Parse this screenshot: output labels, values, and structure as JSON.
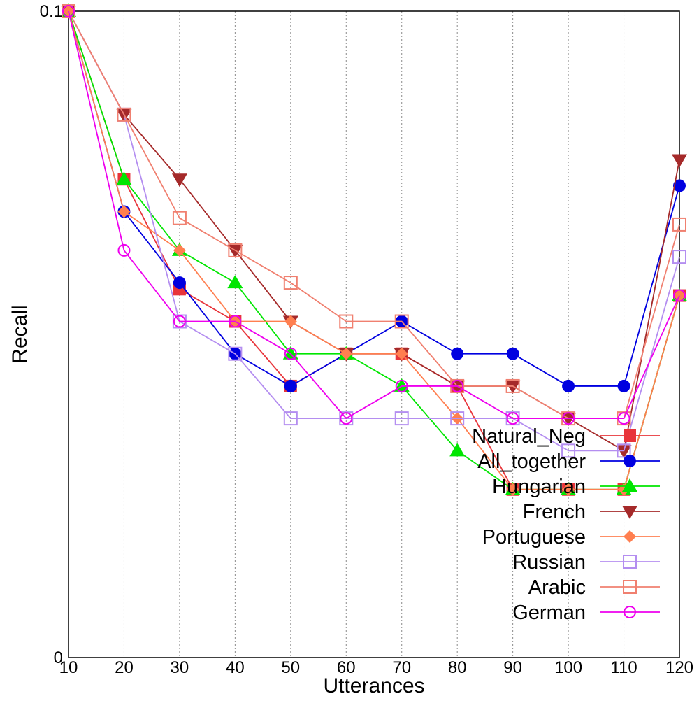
{
  "chart_data": {
    "type": "line",
    "title": "",
    "xlabel": "Utterances",
    "ylabel": "Recall",
    "x": [
      10,
      20,
      30,
      40,
      50,
      60,
      70,
      80,
      90,
      100,
      110,
      120
    ],
    "x_ticks": [
      "10",
      "20",
      "30",
      "40",
      "50",
      "60",
      "70",
      "80",
      "90",
      "100",
      "110",
      "120"
    ],
    "y_ticks": [
      "0",
      "0.1"
    ],
    "xlim": [
      10,
      120
    ],
    "ylim": [
      0,
      0.1
    ],
    "grid": "vertical dotted",
    "legend_position": "bottom-right",
    "series": [
      {
        "name": "Natural_Neg",
        "color": "#e8343a",
        "marker": "square-filled",
        "values": [
          0.1,
          0.074,
          0.057,
          0.052,
          0.042,
          0.047,
          0.047,
          0.042,
          0.026,
          0.026,
          0.026,
          0.056
        ]
      },
      {
        "name": "All_together",
        "color": "#0000e0",
        "marker": "circle-filled",
        "values": [
          0.1,
          0.069,
          0.058,
          0.047,
          0.042,
          0.047,
          0.052,
          0.047,
          0.047,
          0.042,
          0.042,
          0.073
        ]
      },
      {
        "name": "Hungarian",
        "color": "#00e600",
        "marker": "triangle-up-filled",
        "values": [
          0.1,
          0.074,
          0.063,
          0.058,
          0.047,
          0.047,
          0.042,
          0.032,
          0.026,
          0.026,
          0.026,
          0.056
        ]
      },
      {
        "name": "French",
        "color": "#a52a2a",
        "marker": "triangle-down-filled",
        "values": [
          0.1,
          0.084,
          0.074,
          0.063,
          0.052,
          0.047,
          0.047,
          0.042,
          0.042,
          0.037,
          0.032,
          0.077
        ]
      },
      {
        "name": "Portuguese",
        "color": "#ff7f50",
        "marker": "diamond-filled",
        "values": [
          0.1,
          0.069,
          0.063,
          0.052,
          0.052,
          0.047,
          0.047,
          0.037,
          0.026,
          0.026,
          0.026,
          0.056
        ]
      },
      {
        "name": "Russian",
        "color": "#b48ef0",
        "marker": "square-open",
        "values": [
          0.1,
          0.084,
          0.052,
          0.047,
          0.037,
          0.037,
          0.037,
          0.037,
          0.037,
          0.032,
          0.032,
          0.062
        ]
      },
      {
        "name": "Arabic",
        "color": "#f08070",
        "marker": "square-open",
        "values": [
          0.1,
          0.084,
          0.068,
          0.063,
          0.058,
          0.052,
          0.052,
          0.042,
          0.042,
          0.037,
          0.037,
          0.067
        ]
      },
      {
        "name": "German",
        "color": "#ee00ee",
        "marker": "circle-open",
        "values": [
          0.1,
          0.063,
          0.052,
          0.052,
          0.047,
          0.037,
          0.042,
          0.042,
          0.037,
          0.037,
          0.037,
          0.056
        ]
      }
    ]
  }
}
